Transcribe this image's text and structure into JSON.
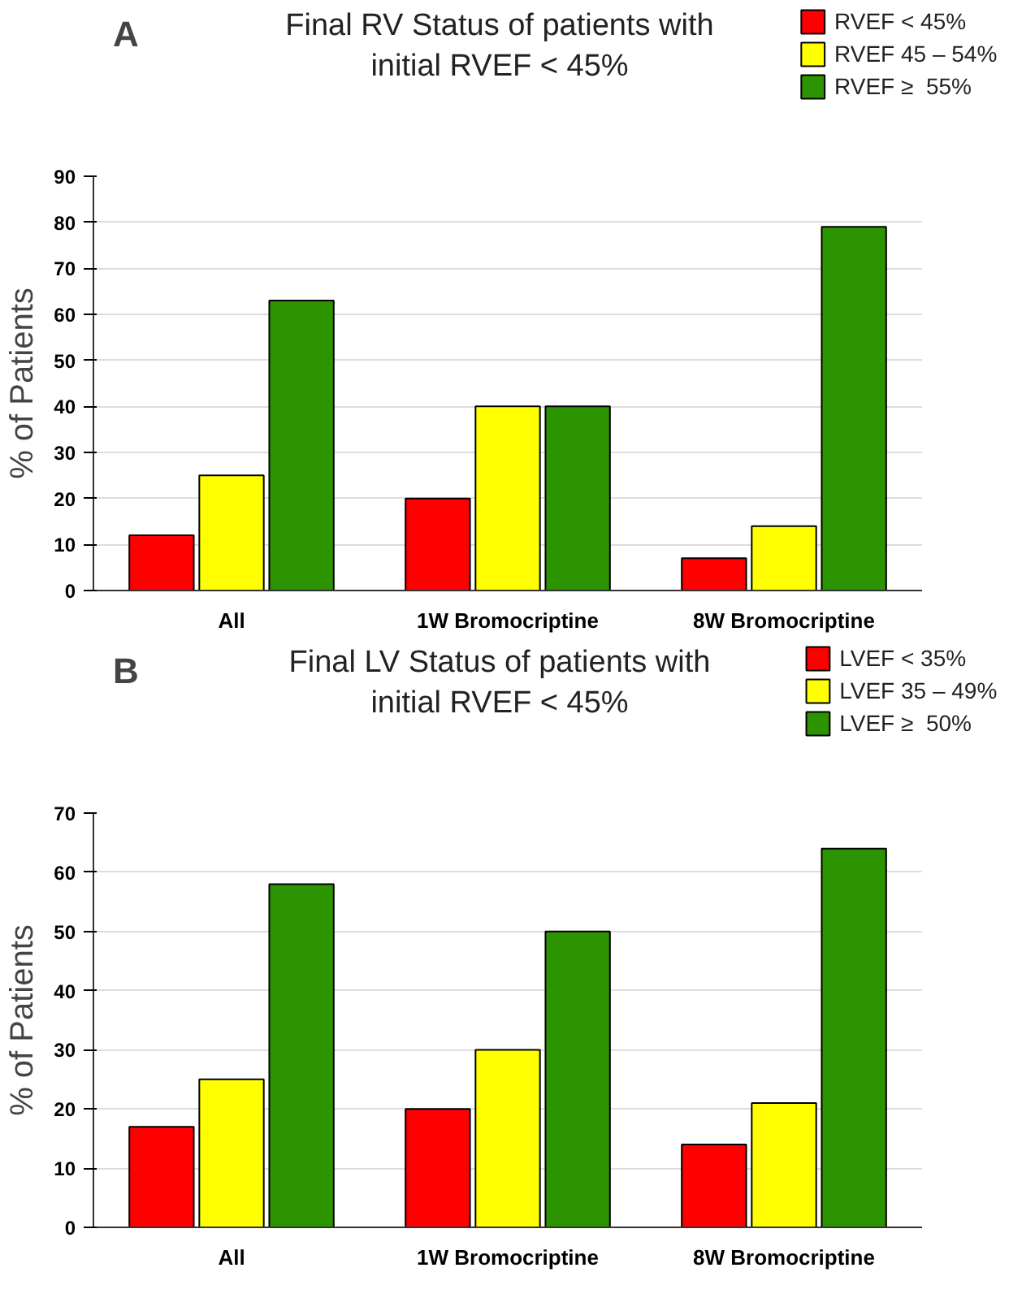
{
  "chart_data": [
    {
      "type": "bar",
      "title": "Final RV Status of patients with\ninitial RVEF < 45%",
      "ylabel": "% of Patients",
      "annotations": [
        "A"
      ],
      "categories": [
        "All",
        "1W Bromocriptine",
        "8W Bromocriptine"
      ],
      "series": [
        {
          "name": "RVEF < 45%",
          "color": "#ff0000",
          "values": [
            12,
            20,
            7
          ]
        },
        {
          "name": "RVEF 45 – 54%",
          "color": "#ffff00",
          "values": [
            25,
            40,
            14
          ]
        },
        {
          "name": "RVEF ≥  55%",
          "color": "#2b9400",
          "values": [
            63,
            40,
            79
          ]
        }
      ],
      "ylim": [
        0,
        90
      ],
      "yticks": [
        0,
        10,
        20,
        30,
        40,
        50,
        60,
        70,
        80,
        90
      ],
      "grid": "y",
      "legend": "top right"
    },
    {
      "type": "bar",
      "title": "Final LV Status of patients with\ninitial RVEF < 45%",
      "ylabel": "% of Patients",
      "annotations": [
        "B"
      ],
      "categories": [
        "All",
        "1W Bromocriptine",
        "8W Bromocriptine"
      ],
      "series": [
        {
          "name": "LVEF < 35%",
          "color": "#ff0000",
          "values": [
            17,
            20,
            14
          ]
        },
        {
          "name": "LVEF 35 – 49%",
          "color": "#ffff00",
          "values": [
            25,
            30,
            21
          ]
        },
        {
          "name": "LVEF ≥  50%",
          "color": "#2b9400",
          "values": [
            58,
            50,
            64
          ]
        }
      ],
      "ylim": [
        0,
        70
      ],
      "yticks": [
        0,
        10,
        20,
        30,
        40,
        50,
        60,
        70
      ],
      "grid": "y",
      "legend": "top right"
    }
  ]
}
